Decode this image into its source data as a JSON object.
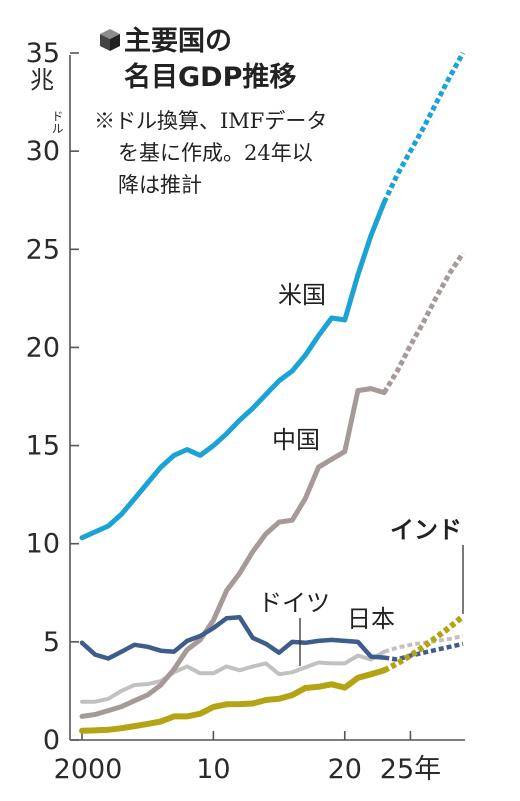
{
  "chart_data": {
    "type": "line",
    "title_line1": "主要国の",
    "title_line2": "名目GDP推移",
    "title_icon": "cube-icon",
    "note_lines": [
      "※ドル換算、IMFデータ",
      "を基に作成。24年以",
      "降は推計"
    ],
    "yunit_main": "兆",
    "yunit_small": "ドル",
    "xtick_labels": [
      "2000",
      "10",
      "20",
      "25年"
    ],
    "xticks": [
      2000,
      2010,
      2020,
      2025
    ],
    "ytick_labels": [
      "0",
      "5",
      "10",
      "15",
      "20",
      "25",
      "30",
      "35"
    ],
    "yticks": [
      0,
      5,
      10,
      15,
      20,
      25,
      30,
      35
    ],
    "xlim": [
      2000,
      2029
    ],
    "ylim": [
      0,
      35
    ],
    "actual_through": 2023,
    "grid": false,
    "series": [
      {
        "name": "米国",
        "color": "#1aa3d4",
        "label_position": "above-line",
        "x": [
          2000,
          2001,
          2002,
          2003,
          2004,
          2005,
          2006,
          2007,
          2008,
          2009,
          2010,
          2011,
          2012,
          2013,
          2014,
          2015,
          2016,
          2017,
          2018,
          2019,
          2020,
          2021,
          2022,
          2023,
          2024,
          2025,
          2026,
          2027,
          2028,
          2029
        ],
        "y": [
          10.3,
          10.6,
          10.9,
          11.5,
          12.3,
          13.1,
          13.9,
          14.5,
          14.8,
          14.5,
          15.0,
          15.6,
          16.3,
          16.9,
          17.6,
          18.3,
          18.8,
          19.6,
          20.6,
          21.5,
          21.4,
          23.7,
          25.7,
          27.4,
          28.8,
          30.0,
          31.2,
          32.5,
          33.8,
          35.0
        ]
      },
      {
        "name": "中国",
        "color": "#a59a98",
        "label_position": "left-of-line",
        "x": [
          2000,
          2001,
          2002,
          2003,
          2004,
          2005,
          2006,
          2007,
          2008,
          2009,
          2010,
          2011,
          2012,
          2013,
          2014,
          2015,
          2016,
          2017,
          2018,
          2019,
          2020,
          2021,
          2022,
          2023,
          2024,
          2025,
          2026,
          2027,
          2028,
          2029
        ],
        "y": [
          1.2,
          1.3,
          1.5,
          1.7,
          2.0,
          2.3,
          2.8,
          3.6,
          4.6,
          5.1,
          6.1,
          7.6,
          8.5,
          9.6,
          10.5,
          11.1,
          11.2,
          12.3,
          13.9,
          14.3,
          14.7,
          17.8,
          17.9,
          17.7,
          18.8,
          20.1,
          21.3,
          22.6,
          23.8,
          24.8
        ]
      },
      {
        "name": "ドイツ",
        "color": "#c1c1c1",
        "label_position": "leader-line",
        "x": [
          2000,
          2001,
          2002,
          2003,
          2004,
          2005,
          2006,
          2007,
          2008,
          2009,
          2010,
          2011,
          2012,
          2013,
          2014,
          2015,
          2016,
          2017,
          2018,
          2019,
          2020,
          2021,
          2022,
          2023,
          2024,
          2025,
          2026,
          2027,
          2028,
          2029
        ],
        "y": [
          1.95,
          1.95,
          2.1,
          2.5,
          2.8,
          2.85,
          3.0,
          3.45,
          3.75,
          3.4,
          3.4,
          3.75,
          3.55,
          3.75,
          3.9,
          3.35,
          3.45,
          3.7,
          3.95,
          3.9,
          3.9,
          4.3,
          4.1,
          4.5,
          4.7,
          4.85,
          4.95,
          5.05,
          5.15,
          5.3
        ]
      },
      {
        "name": "日本",
        "color": "#3d5e8c",
        "label_position": "above-line",
        "x": [
          2000,
          2001,
          2002,
          2003,
          2004,
          2005,
          2006,
          2007,
          2008,
          2009,
          2010,
          2011,
          2012,
          2013,
          2014,
          2015,
          2016,
          2017,
          2018,
          2019,
          2020,
          2021,
          2022,
          2023,
          2024,
          2025,
          2026,
          2027,
          2028,
          2029
        ],
        "y": [
          4.95,
          4.35,
          4.15,
          4.5,
          4.85,
          4.75,
          4.55,
          4.5,
          5.05,
          5.3,
          5.7,
          6.2,
          6.25,
          5.2,
          4.9,
          4.45,
          5.0,
          4.95,
          5.05,
          5.1,
          5.05,
          5.0,
          4.25,
          4.2,
          4.1,
          4.3,
          4.45,
          4.6,
          4.75,
          4.9
        ]
      },
      {
        "name": "インド",
        "color": "#b4a414",
        "label_position": "leader-line",
        "label_bold": true,
        "x": [
          2000,
          2001,
          2002,
          2003,
          2004,
          2005,
          2006,
          2007,
          2008,
          2009,
          2010,
          2011,
          2012,
          2013,
          2014,
          2015,
          2016,
          2017,
          2018,
          2019,
          2020,
          2021,
          2022,
          2023,
          2024,
          2025,
          2026,
          2027,
          2028,
          2029
        ],
        "y": [
          0.47,
          0.49,
          0.52,
          0.6,
          0.71,
          0.82,
          0.94,
          1.2,
          1.2,
          1.34,
          1.68,
          1.82,
          1.83,
          1.86,
          2.04,
          2.1,
          2.29,
          2.65,
          2.71,
          2.84,
          2.67,
          3.17,
          3.35,
          3.55,
          3.9,
          4.3,
          4.75,
          5.25,
          5.75,
          6.3
        ]
      }
    ]
  }
}
